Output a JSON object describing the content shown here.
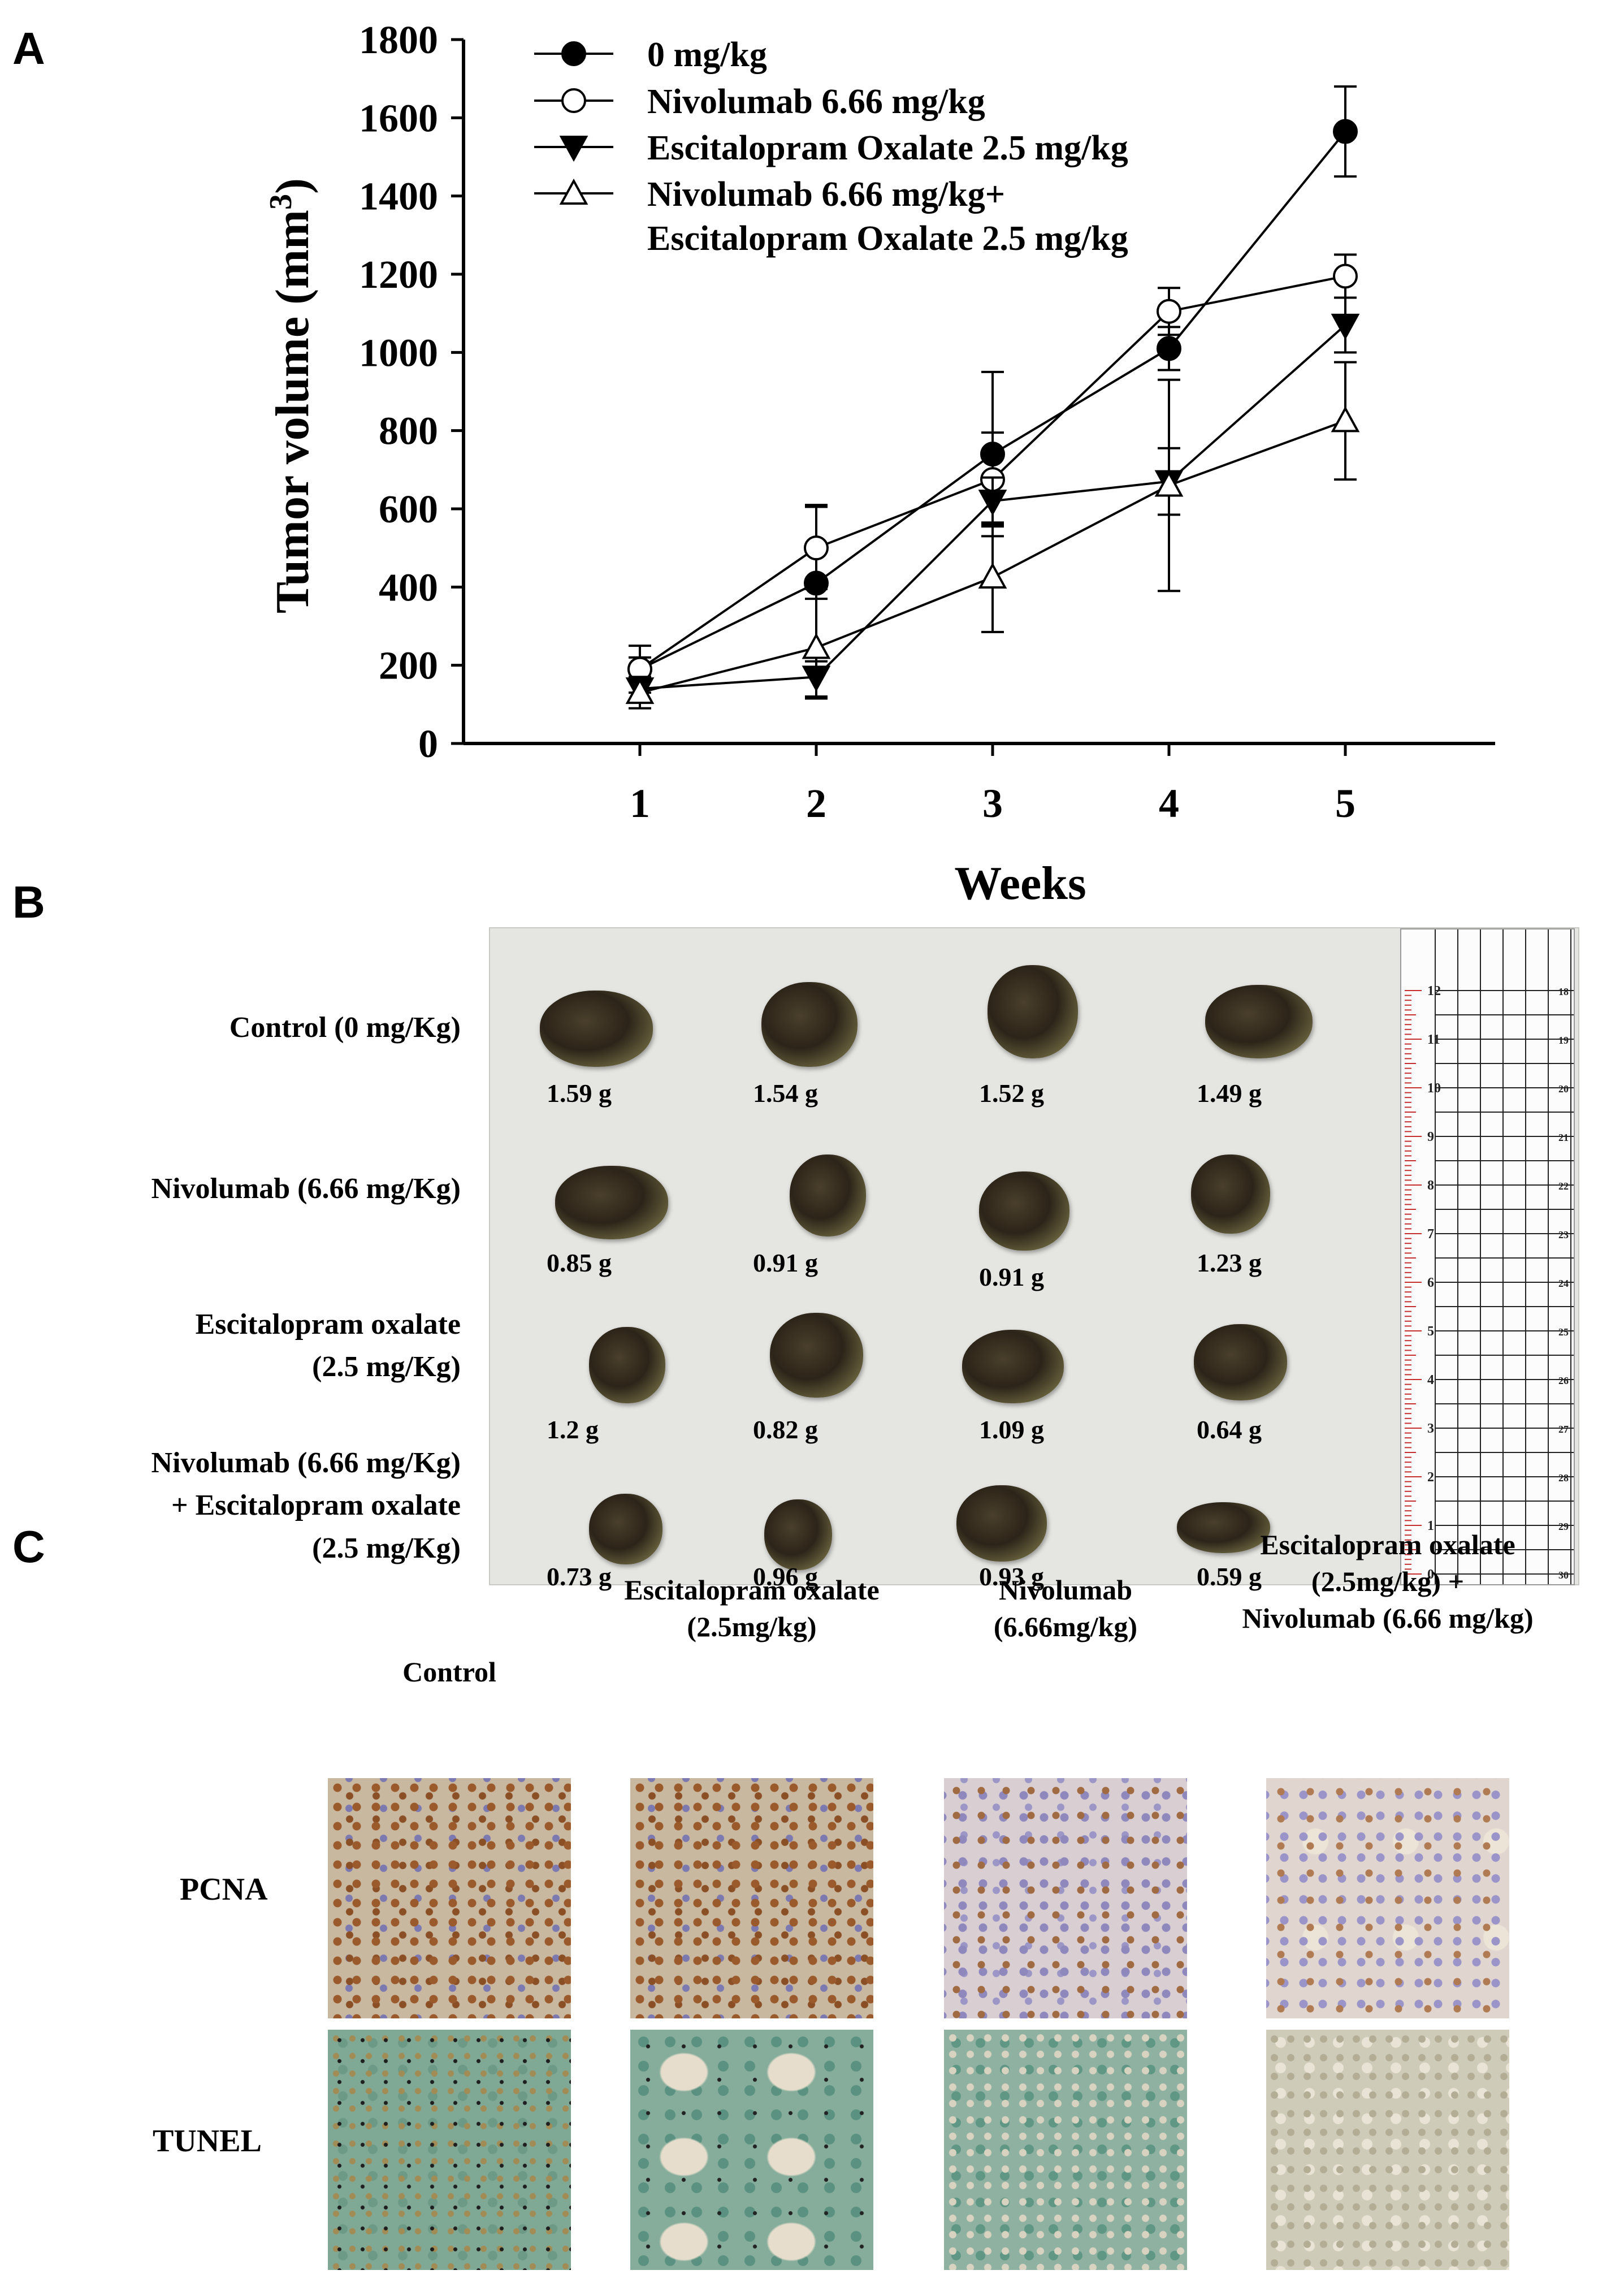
{
  "panels": {
    "a": "A",
    "b": "B",
    "c": "C"
  },
  "chart_data": {
    "type": "line",
    "title": "",
    "xlabel": "Weeks",
    "ylabel": "Tumor volume (mm",
    "ylabel_superscript": "3",
    "ylabel_close": ")",
    "x": [
      1,
      2,
      3,
      4,
      5
    ],
    "xticks": [
      "1",
      "2",
      "3",
      "4",
      "5"
    ],
    "yticks": [
      "0",
      "200",
      "400",
      "600",
      "800",
      "1000",
      "1200",
      "1400",
      "1600",
      "1800"
    ],
    "ylim": [
      0,
      1800
    ],
    "xlim": [
      0,
      6
    ],
    "legend_position": "top-left",
    "series": [
      {
        "name": "0 mg/kg",
        "marker": "filled-circle",
        "values": [
          190,
          410,
          740,
          1010,
          1565
        ],
        "errors": [
          60,
          200,
          210,
          55,
          115
        ]
      },
      {
        "name": "Nivolumab 6.66 mg/kg",
        "marker": "open-circle",
        "values": [
          190,
          500,
          675,
          1105,
          1195
        ],
        "errors": [
          30,
          105,
          120,
          60,
          55
        ]
      },
      {
        "name": "Escitalopram Oxalate 2.5 mg/kg",
        "marker": "filled-triangle-down",
        "values": [
          140,
          170,
          620,
          670,
          1070
        ],
        "errors": [
          30,
          55,
          60,
          85,
          70
        ]
      },
      {
        "name": "Nivolumab 6.66 mg/kg+",
        "name_line2": "Escitalopram Oxalate 2.5 mg/kg",
        "marker": "open-triangle-up",
        "values": [
          130,
          245,
          425,
          660,
          825
        ],
        "errors": [
          40,
          125,
          140,
          270,
          150
        ]
      }
    ]
  },
  "photo_panel": {
    "rows": [
      {
        "label": [
          "Control (0 mg/Kg)"
        ],
        "weights": [
          "1.59 g",
          "1.54 g",
          "1.52 g",
          "1.49 g"
        ]
      },
      {
        "label": [
          "Nivolumab (6.66 mg/Kg)"
        ],
        "weights": [
          "0.85 g",
          "0.91 g",
          "0.91 g",
          "1.23 g"
        ]
      },
      {
        "label": [
          "Escitalopram oxalate",
          "(2.5 mg/Kg)"
        ],
        "weights": [
          "1.2 g",
          "0.82 g",
          "1.09 g",
          "0.64 g"
        ]
      },
      {
        "label": [
          "Nivolumab (6.66 mg/Kg)",
          "+ Escitalopram oxalate",
          "(2.5 mg/Kg)"
        ],
        "weights": [
          "0.73 g",
          "0.96 g",
          "0.93 g",
          "0.59 g"
        ]
      }
    ],
    "ruler_left": [
      "0",
      "1",
      "2",
      "3",
      "4",
      "5",
      "6",
      "7",
      "8",
      "9",
      "10",
      "11",
      "12"
    ],
    "ruler_right": [
      "30",
      "29",
      "28",
      "27",
      "26",
      "25",
      "24",
      "23",
      "22",
      "21",
      "20",
      "19",
      "18"
    ]
  },
  "histology": {
    "columns": [
      [
        "Control"
      ],
      [
        "Escitalopram oxalate",
        "(2.5mg/kg)"
      ],
      [
        "Nivolumab",
        "(6.66mg/kg)"
      ],
      [
        "Escitalopram oxalate",
        "(2.5mg/kg) +",
        "Nivolumab (6.66 mg/kg)"
      ]
    ],
    "rows": [
      "PCNA",
      "TUNEL"
    ]
  }
}
